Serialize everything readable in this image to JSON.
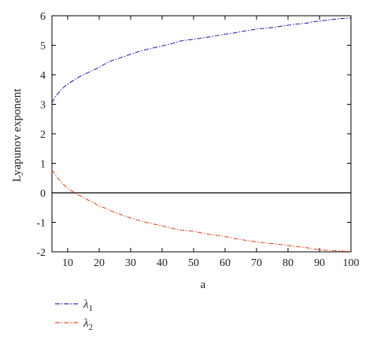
{
  "chart_data": {
    "type": "line",
    "xlabel": "a",
    "ylabel": "Lyapunov exponent",
    "xlim": [
      5,
      100
    ],
    "ylim": [
      -2,
      6
    ],
    "xticks": [
      10,
      20,
      30,
      40,
      50,
      60,
      70,
      80,
      90,
      100
    ],
    "yticks": [
      -2,
      -1,
      0,
      1,
      2,
      3,
      4,
      5,
      6
    ],
    "grid": false,
    "zero_line": 0,
    "legend_placement": "below",
    "series": [
      {
        "name": "λ",
        "subscript": "1",
        "color": "#2b2bb0",
        "style": "dash-dot",
        "x": [
          5,
          6,
          7,
          8,
          9,
          10,
          12,
          14,
          16,
          18,
          20,
          22,
          24,
          26,
          28,
          30,
          33,
          36,
          40,
          43,
          46,
          50,
          53,
          56,
          60,
          63,
          66,
          70,
          73,
          76,
          80,
          83,
          86,
          88,
          90,
          93,
          96,
          100
        ],
        "y": [
          3.05,
          3.25,
          3.38,
          3.5,
          3.6,
          3.68,
          3.82,
          3.95,
          4.05,
          4.15,
          4.25,
          4.38,
          4.48,
          4.55,
          4.62,
          4.7,
          4.8,
          4.88,
          4.98,
          5.05,
          5.15,
          5.2,
          5.25,
          5.3,
          5.38,
          5.42,
          5.48,
          5.55,
          5.58,
          5.62,
          5.68,
          5.72,
          5.75,
          5.8,
          5.82,
          5.86,
          5.9,
          5.92
        ]
      },
      {
        "name": "λ",
        "subscript": "2",
        "color": "#e0522a",
        "style": "dash-dot",
        "x": [
          5,
          6,
          7,
          8,
          9,
          10,
          11,
          12,
          13,
          14,
          16,
          18,
          20,
          22,
          24,
          26,
          28,
          30,
          33,
          36,
          40,
          43,
          46,
          50,
          53,
          56,
          60,
          63,
          66,
          70,
          73,
          76,
          80,
          83,
          86,
          88,
          90,
          93,
          96,
          100
        ],
        "y": [
          0.78,
          0.62,
          0.48,
          0.35,
          0.25,
          0.15,
          0.08,
          0.02,
          -0.05,
          -0.1,
          -0.22,
          -0.32,
          -0.45,
          -0.52,
          -0.62,
          -0.7,
          -0.78,
          -0.85,
          -0.95,
          -1.03,
          -1.12,
          -1.2,
          -1.26,
          -1.3,
          -1.37,
          -1.42,
          -1.48,
          -1.55,
          -1.6,
          -1.66,
          -1.7,
          -1.73,
          -1.78,
          -1.82,
          -1.86,
          -1.9,
          -1.93,
          -1.95,
          -1.97,
          -1.99
        ]
      }
    ]
  }
}
